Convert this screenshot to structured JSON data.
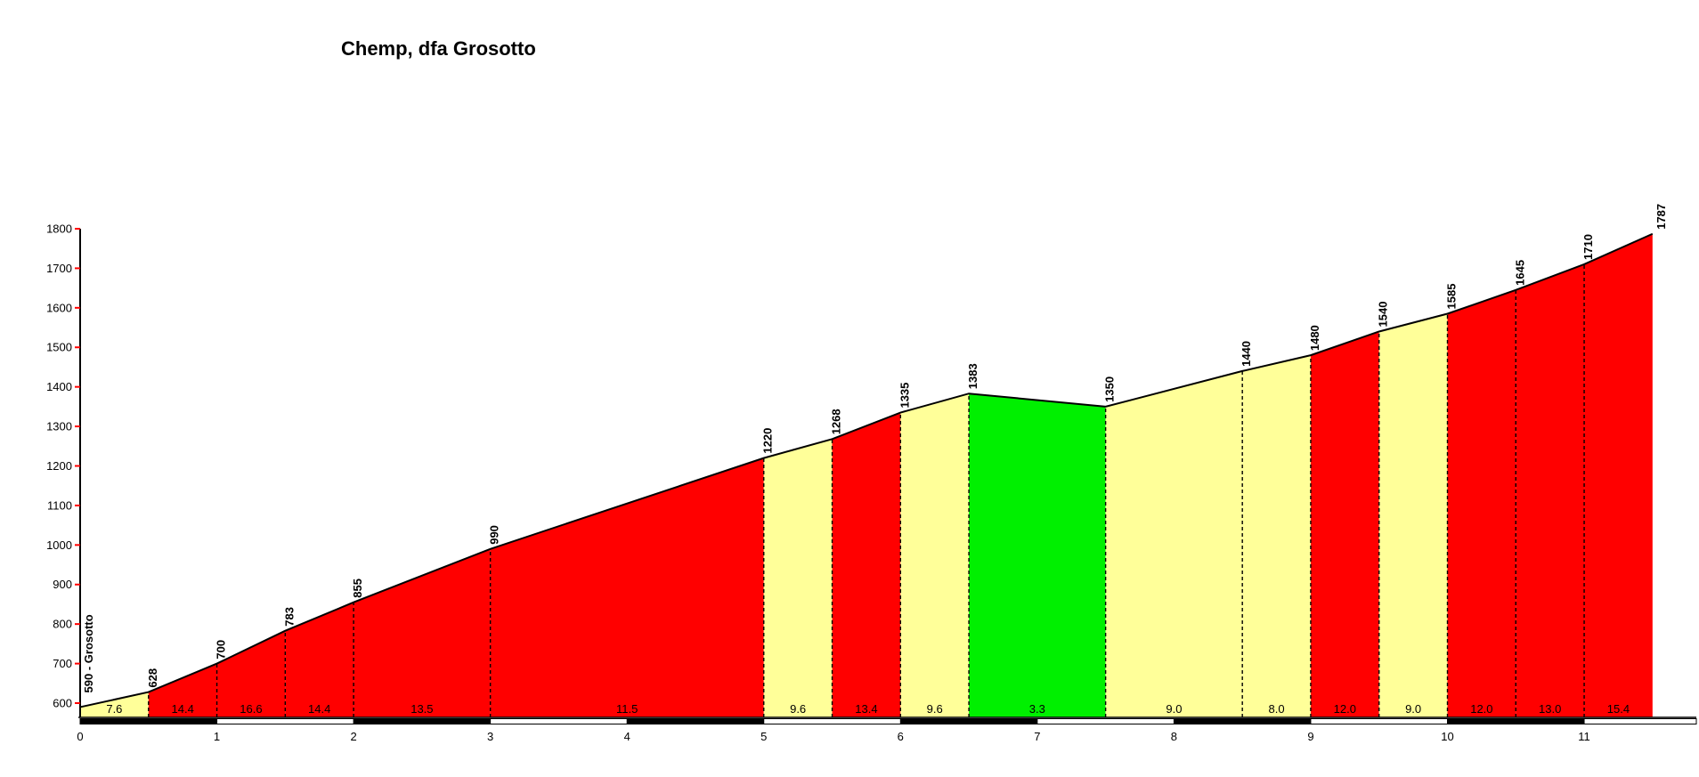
{
  "title": "Chemp, dfa Grosotto",
  "chart_data": {
    "type": "area",
    "title": "Chemp, dfa Grosotto",
    "subtitle": "",
    "xlabel": "",
    "ylabel": "",
    "x_unit": "km",
    "y_unit": "m",
    "ylim": [
      600,
      1800
    ],
    "y_tick_step": 100,
    "y_ticks": [
      600,
      700,
      800,
      900,
      1000,
      1100,
      1200,
      1300,
      1400,
      1500,
      1600,
      1700,
      1800
    ],
    "x_ticks": [
      0,
      1,
      2,
      3,
      4,
      5,
      6,
      7,
      8,
      9,
      10,
      11
    ],
    "start_km": 0,
    "end_km": 11.5,
    "grid": false,
    "legend": false,
    "points": [
      {
        "km": 0,
        "elev": 590,
        "label": "590 - Grosotto"
      },
      {
        "km": 0.5,
        "elev": 628,
        "label": "628"
      },
      {
        "km": 1,
        "elev": 700,
        "label": "700"
      },
      {
        "km": 1.5,
        "elev": 783,
        "label": "783"
      },
      {
        "km": 2,
        "elev": 855,
        "label": "855"
      },
      {
        "km": 3,
        "elev": 990,
        "label": "990"
      },
      {
        "km": 5,
        "elev": 1220,
        "label": "1220"
      },
      {
        "km": 5.5,
        "elev": 1268,
        "label": "1268"
      },
      {
        "km": 6,
        "elev": 1335,
        "label": "1335"
      },
      {
        "km": 6.5,
        "elev": 1383,
        "label": "1383"
      },
      {
        "km": 7.5,
        "elev": 1350,
        "label": "1350"
      },
      {
        "km": 8.5,
        "elev": 1440,
        "label": "1440"
      },
      {
        "km": 9,
        "elev": 1480,
        "label": "1480"
      },
      {
        "km": 9.5,
        "elev": 1540,
        "label": "1540"
      },
      {
        "km": 10,
        "elev": 1585,
        "label": "1585"
      },
      {
        "km": 10.5,
        "elev": 1645,
        "label": "1645"
      },
      {
        "km": 11,
        "elev": 1710,
        "label": "1710"
      },
      {
        "km": 11.5,
        "elev": 1787,
        "label": "1787"
      }
    ],
    "segments": [
      {
        "from": 0,
        "to": 0.5,
        "grade": "7.6",
        "color": "yellow"
      },
      {
        "from": 0.5,
        "to": 1,
        "grade": "14.4",
        "color": "red"
      },
      {
        "from": 1,
        "to": 1.5,
        "grade": "16.6",
        "color": "red"
      },
      {
        "from": 1.5,
        "to": 2,
        "grade": "14.4",
        "color": "red"
      },
      {
        "from": 2,
        "to": 3,
        "grade": "13.5",
        "color": "red"
      },
      {
        "from": 3,
        "to": 5,
        "grade": "11.5",
        "color": "red"
      },
      {
        "from": 5,
        "to": 5.5,
        "grade": "9.6",
        "color": "yellow"
      },
      {
        "from": 5.5,
        "to": 6,
        "grade": "13.4",
        "color": "red"
      },
      {
        "from": 6,
        "to": 6.5,
        "grade": "9.6",
        "color": "yellow"
      },
      {
        "from": 6.5,
        "to": 7.5,
        "grade": "3.3",
        "color": "green"
      },
      {
        "from": 7.5,
        "to": 8.5,
        "grade": "9.0",
        "color": "yellow"
      },
      {
        "from": 8.5,
        "to": 9,
        "grade": "8.0",
        "color": "yellow"
      },
      {
        "from": 9,
        "to": 9.5,
        "grade": "12.0",
        "color": "red"
      },
      {
        "from": 9.5,
        "to": 10,
        "grade": "9.0",
        "color": "yellow"
      },
      {
        "from": 10,
        "to": 10.5,
        "grade": "12.0",
        "color": "red"
      },
      {
        "from": 10.5,
        "to": 11,
        "grade": "13.0",
        "color": "red"
      },
      {
        "from": 11,
        "to": 11.5,
        "grade": "15.4",
        "color": "red"
      }
    ],
    "colors": {
      "red": "#FF0000",
      "yellow": "#FFFF99",
      "green": "#00F000",
      "axis_tick": "#FF0000",
      "line": "#000000",
      "km_bar_black": "#000000",
      "km_bar_white": "#FFFFFF"
    }
  }
}
